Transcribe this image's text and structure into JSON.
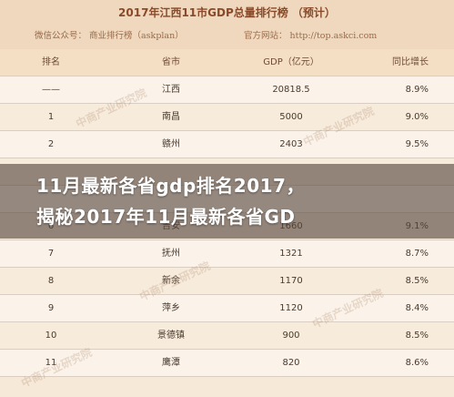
{
  "header": {
    "title": "2017年江西11市GDP总量排行榜 （预计）",
    "wechat": "微信公众号： 商业排行榜（askplan）",
    "website": "官方网站： http://top.askci.com"
  },
  "table": {
    "headers": [
      "排名",
      "省市",
      "GDP（亿元）",
      "同比增长"
    ],
    "rows": [
      [
        "——",
        "江西",
        "20818.5",
        "8.9%"
      ],
      [
        "1",
        "南昌",
        "5000",
        "9.0%"
      ],
      [
        "2",
        "赣州",
        "2403",
        "9.5%"
      ],
      [
        "",
        "",
        "",
        ""
      ],
      [
        "",
        "",
        "",
        ""
      ],
      [
        "6",
        "吉安",
        "1660",
        "9.1%"
      ],
      [
        "7",
        "抚州",
        "1321",
        "8.7%"
      ],
      [
        "8",
        "新余",
        "1170",
        "8.5%"
      ],
      [
        "9",
        "萍乡",
        "1120",
        "8.4%"
      ],
      [
        "10",
        "景德镇",
        "900",
        "8.5%"
      ],
      [
        "11",
        "鹰潭",
        "820",
        "8.6%"
      ]
    ]
  },
  "overlay": {
    "line1": "11月最新各省gdp排名2017，",
    "line2": "揭秘2017年11月最新各省GD"
  },
  "watermark": "中商产业研究院"
}
